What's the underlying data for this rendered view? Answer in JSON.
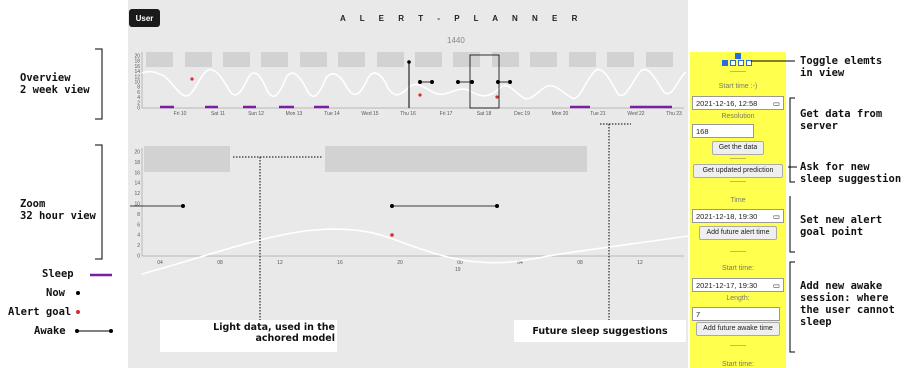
{
  "app": {
    "title": "A L E R T - P L A N N E R",
    "user_label": "User",
    "count": "1440"
  },
  "overview": {
    "x_ticks": [
      "Fri 10",
      "Sat 11",
      "Sun 12",
      "Mon 13",
      "Tue 14",
      "Wed 15",
      "Thu 16",
      "Fri 17",
      "Sat 18",
      "Dec 19",
      "Mon 20",
      "Tue 21",
      "Wed 22",
      "Thu 23"
    ],
    "y_ticks": [
      "20",
      "18",
      "16",
      "14",
      "12",
      "10",
      "8",
      "6",
      "4",
      "2",
      "0"
    ]
  },
  "zoom": {
    "x_ticks": [
      "04",
      "08",
      "12",
      "16",
      "20",
      "00",
      "04",
      "08",
      "12"
    ],
    "y_ticks": [
      "20",
      "18",
      "16",
      "14",
      "12",
      "10",
      "8",
      "6",
      "4",
      "2",
      "0"
    ],
    "x_sub": "19"
  },
  "sidebar": {
    "dash": "--------",
    "start_time_label": "Start time :-)",
    "start_time_value": "2021-12-16, 12:58",
    "resolution_label": "Resolution",
    "resolution_value": "168",
    "get_data": "Get the data",
    "get_prediction": "Get updated prediction",
    "time_label": "Time",
    "time_value": "2021-12-18, 19:30",
    "add_alert": "Add future alert time",
    "start_time2_label": "Start time:",
    "start_time2_value": "2021-12-17, 19:30",
    "length_label": "Length:",
    "length_value": "7",
    "add_awake": "Add future awake time",
    "start_time3_label": "Start time:"
  },
  "annotations": {
    "overview": "Overview\n2 week view",
    "zoom": "Zoom\n32 hour view",
    "sleep": "Sleep",
    "now": "Now",
    "alert_goal": "Alert goal",
    "awake": "Awake",
    "light_data": "Light data, used in the\nachored model",
    "future_sleep": "Future sleep suggestions",
    "toggle": "Toggle elemts\nin view",
    "get_data": "Get data from\nserver",
    "ask_new": "Ask for new\nsleep suggestion",
    "set_alert": "Set new alert\ngoal point",
    "add_awake": "Add new awake\nsession: where\nthe user cannot\nsleep"
  },
  "colors": {
    "sleep": "#7b1fa2",
    "alert": "#d32f2f",
    "panel": "#ffff4d",
    "bg": "#e9e9e9"
  }
}
